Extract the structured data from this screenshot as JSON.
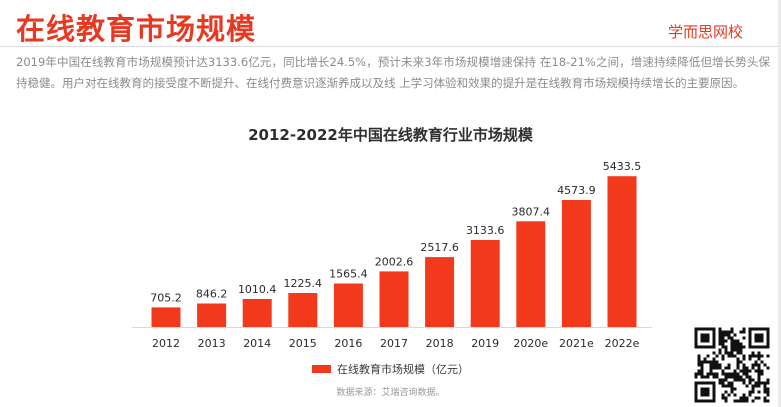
{
  "slide": {
    "title": "在线教育市场规模",
    "brand": "学而思网校",
    "description": "2019年中国在线教育市场规模预计达3133.6亿元，同比增长24.5%，预计未来3年市场规模增速保持 在18-21%之间，增速持续降低但增长势头保持稳健。用户对在线教育的接受度不断提升、在线付费意识逐渐养成以及线 上学习体验和效果的提升是在线教育市场规模持续增长的主要原因。",
    "source_note": "数据来源：艾瑞咨询数据。"
  },
  "colors": {
    "accent": "#e8381f",
    "bar": "#f2391b"
  },
  "chart_data": {
    "type": "bar",
    "title": "2012-2022年中国在线教育行业市场规模",
    "categories": [
      "2012",
      "2013",
      "2014",
      "2015",
      "2016",
      "2017",
      "2018",
      "2019",
      "2020e",
      "2021e",
      "2022e"
    ],
    "series": [
      {
        "name": "在线教育市场规模（亿元）",
        "values": [
          705.2,
          846.2,
          1010.4,
          1225.4,
          1565.4,
          2002.6,
          2517.6,
          3133.6,
          3807.4,
          4573.9,
          5433.5
        ],
        "labels": [
          "705.2",
          "846.2",
          "1010.4",
          "1225.4",
          "1565.4",
          "2002.6",
          "2517.6",
          "3133.6",
          "3807.4",
          "4573.9",
          "5433.5"
        ]
      }
    ],
    "xlabel": "",
    "ylabel": "",
    "ylim": [
      0,
      5800
    ],
    "grid": false,
    "legend": "bottom"
  },
  "qr_code": {
    "icon": "qr-code-icon"
  }
}
